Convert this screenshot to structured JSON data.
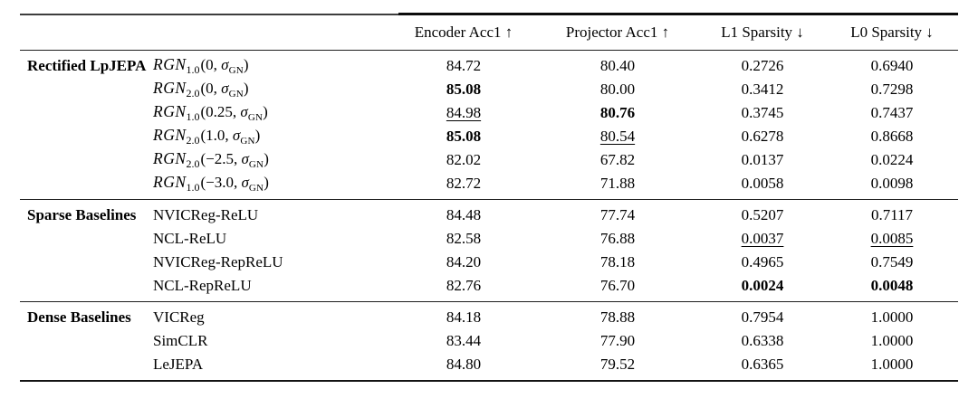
{
  "colors": {
    "background": "#ffffff",
    "text": "#000000",
    "rule": "#1f1f1f"
  },
  "table": {
    "columns": [
      "Encoder Acc1 ↑",
      "Projector Acc1 ↑",
      "L1 Sparsity ↓",
      "L0 Sparsity ↓"
    ],
    "groups": [
      {
        "label": "Rectified LpJEPA",
        "rows": [
          {
            "method": [
              {
                "t": "RGN",
                "s": "cal"
              },
              {
                "t": "1.0",
                "s": "sub"
              },
              {
                "t": "(0, ",
                "s": "rm"
              },
              {
                "t": "σ",
                "s": "it"
              },
              {
                "t": "GN",
                "s": "ssub"
              },
              {
                "t": ")",
                "s": "rm"
              }
            ],
            "values": [
              {
                "t": "84.72",
                "s": ""
              },
              {
                "t": "80.40",
                "s": ""
              },
              {
                "t": "0.2726",
                "s": ""
              },
              {
                "t": "0.6940",
                "s": ""
              }
            ]
          },
          {
            "method": [
              {
                "t": "RGN",
                "s": "cal"
              },
              {
                "t": "2.0",
                "s": "sub"
              },
              {
                "t": "(0, ",
                "s": "rm"
              },
              {
                "t": "σ",
                "s": "it"
              },
              {
                "t": "GN",
                "s": "ssub"
              },
              {
                "t": ")",
                "s": "rm"
              }
            ],
            "values": [
              {
                "t": "85.08",
                "s": "b"
              },
              {
                "t": "80.00",
                "s": ""
              },
              {
                "t": "0.3412",
                "s": ""
              },
              {
                "t": "0.7298",
                "s": ""
              }
            ]
          },
          {
            "method": [
              {
                "t": "RGN",
                "s": "cal"
              },
              {
                "t": "1.0",
                "s": "sub"
              },
              {
                "t": "(0.25, ",
                "s": "rm"
              },
              {
                "t": "σ",
                "s": "it"
              },
              {
                "t": "GN",
                "s": "ssub"
              },
              {
                "t": ")",
                "s": "rm"
              }
            ],
            "values": [
              {
                "t": "84.98",
                "s": "u"
              },
              {
                "t": "80.76",
                "s": "b"
              },
              {
                "t": "0.3745",
                "s": ""
              },
              {
                "t": "0.7437",
                "s": ""
              }
            ]
          },
          {
            "method": [
              {
                "t": "RGN",
                "s": "cal"
              },
              {
                "t": "2.0",
                "s": "sub"
              },
              {
                "t": "(1.0, ",
                "s": "rm"
              },
              {
                "t": "σ",
                "s": "it"
              },
              {
                "t": "GN",
                "s": "ssub"
              },
              {
                "t": ")",
                "s": "rm"
              }
            ],
            "values": [
              {
                "t": "85.08",
                "s": "b"
              },
              {
                "t": "80.54",
                "s": "u"
              },
              {
                "t": "0.6278",
                "s": ""
              },
              {
                "t": "0.8668",
                "s": ""
              }
            ]
          },
          {
            "method": [
              {
                "t": "RGN",
                "s": "cal"
              },
              {
                "t": "2.0",
                "s": "sub"
              },
              {
                "t": "(−2.5, ",
                "s": "rm"
              },
              {
                "t": "σ",
                "s": "it"
              },
              {
                "t": "GN",
                "s": "ssub"
              },
              {
                "t": ")",
                "s": "rm"
              }
            ],
            "values": [
              {
                "t": "82.02",
                "s": ""
              },
              {
                "t": "67.82",
                "s": ""
              },
              {
                "t": "0.0137",
                "s": ""
              },
              {
                "t": "0.0224",
                "s": ""
              }
            ]
          },
          {
            "method": [
              {
                "t": "RGN",
                "s": "cal"
              },
              {
                "t": "1.0",
                "s": "sub"
              },
              {
                "t": "(−3.0, ",
                "s": "rm"
              },
              {
                "t": "σ",
                "s": "it"
              },
              {
                "t": "GN",
                "s": "ssub"
              },
              {
                "t": ")",
                "s": "rm"
              }
            ],
            "values": [
              {
                "t": "82.72",
                "s": ""
              },
              {
                "t": "71.88",
                "s": ""
              },
              {
                "t": "0.0058",
                "s": ""
              },
              {
                "t": "0.0098",
                "s": ""
              }
            ]
          }
        ]
      },
      {
        "label": "Sparse Baselines",
        "rows": [
          {
            "method": [
              {
                "t": "NVICReg-ReLU",
                "s": "rm"
              }
            ],
            "values": [
              {
                "t": "84.48",
                "s": ""
              },
              {
                "t": "77.74",
                "s": ""
              },
              {
                "t": "0.5207",
                "s": ""
              },
              {
                "t": "0.7117",
                "s": ""
              }
            ]
          },
          {
            "method": [
              {
                "t": "NCL-ReLU",
                "s": "rm"
              }
            ],
            "values": [
              {
                "t": "82.58",
                "s": ""
              },
              {
                "t": "76.88",
                "s": ""
              },
              {
                "t": "0.0037",
                "s": "u"
              },
              {
                "t": "0.0085",
                "s": "u"
              }
            ]
          },
          {
            "method": [
              {
                "t": "NVICReg-RepReLU",
                "s": "rm"
              }
            ],
            "values": [
              {
                "t": "84.20",
                "s": ""
              },
              {
                "t": "78.18",
                "s": ""
              },
              {
                "t": "0.4965",
                "s": ""
              },
              {
                "t": "0.7549",
                "s": ""
              }
            ]
          },
          {
            "method": [
              {
                "t": "NCL-RepReLU",
                "s": "rm"
              }
            ],
            "values": [
              {
                "t": "82.76",
                "s": ""
              },
              {
                "t": "76.70",
                "s": ""
              },
              {
                "t": "0.0024",
                "s": "b"
              },
              {
                "t": "0.0048",
                "s": "b"
              }
            ]
          }
        ]
      },
      {
        "label": "Dense Baselines",
        "rows": [
          {
            "method": [
              {
                "t": "VICReg",
                "s": "rm"
              }
            ],
            "values": [
              {
                "t": "84.18",
                "s": ""
              },
              {
                "t": "78.88",
                "s": ""
              },
              {
                "t": "0.7954",
                "s": ""
              },
              {
                "t": "1.0000",
                "s": ""
              }
            ]
          },
          {
            "method": [
              {
                "t": "SimCLR",
                "s": "rm"
              }
            ],
            "values": [
              {
                "t": "83.44",
                "s": ""
              },
              {
                "t": "77.90",
                "s": ""
              },
              {
                "t": "0.6338",
                "s": ""
              },
              {
                "t": "1.0000",
                "s": ""
              }
            ]
          },
          {
            "method": [
              {
                "t": "LeJEPA",
                "s": "rm"
              }
            ],
            "values": [
              {
                "t": "84.80",
                "s": ""
              },
              {
                "t": "79.52",
                "s": ""
              },
              {
                "t": "0.6365",
                "s": ""
              },
              {
                "t": "1.0000",
                "s": ""
              }
            ]
          }
        ]
      }
    ]
  }
}
